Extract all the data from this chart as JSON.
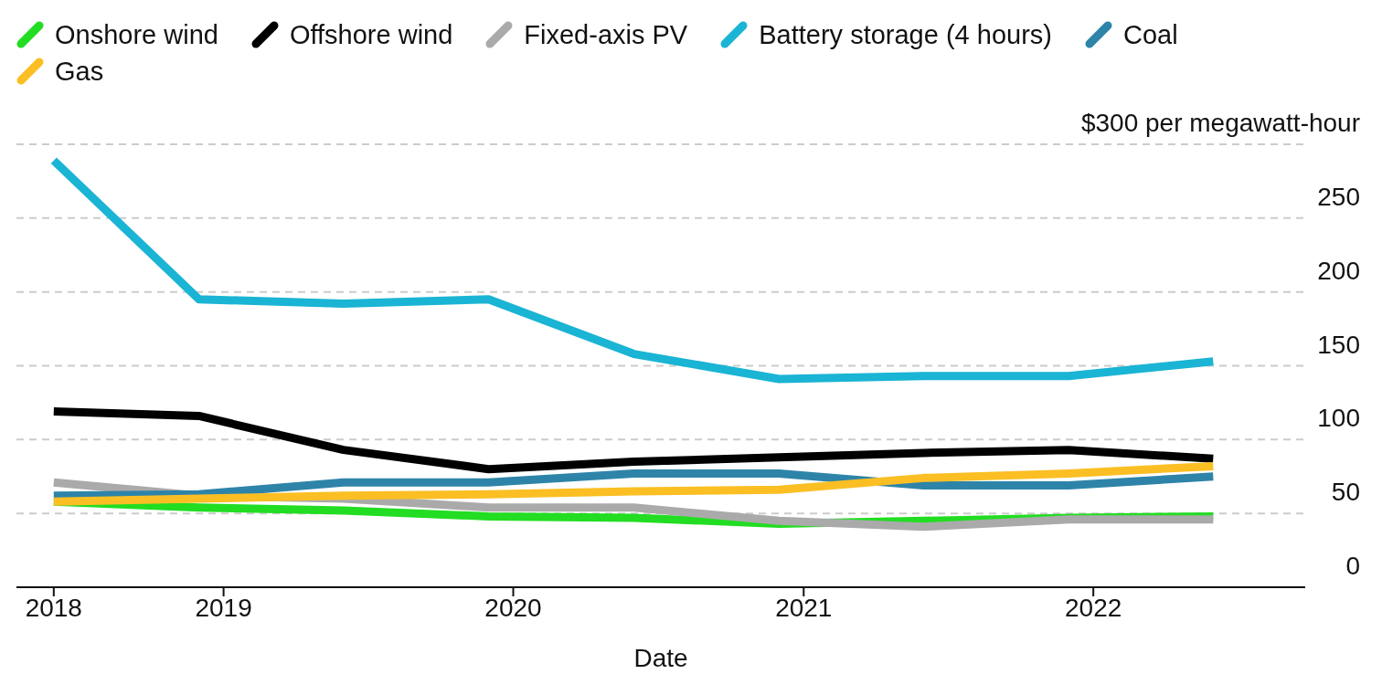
{
  "chart_data": {
    "type": "line",
    "xlabel": "Date",
    "x": [
      "2018-06",
      "2018-12",
      "2019-06",
      "2019-12",
      "2020-06",
      "2020-12",
      "2021-06",
      "2021-12",
      "2022-06"
    ],
    "xlim": [
      "2018-04-15",
      "2022-09-25"
    ],
    "xticks": [
      {
        "value": "2018-06",
        "label": "2018"
      },
      {
        "value": "2019-01",
        "label": "2019"
      },
      {
        "value": "2020-01",
        "label": "2020"
      },
      {
        "value": "2021-01",
        "label": "2021"
      },
      {
        "value": "2022-01",
        "label": "2022"
      }
    ],
    "ylim": [
      0,
      300
    ],
    "yticks": [
      0,
      50,
      100,
      150,
      200,
      250,
      {
        "value": 300,
        "label": "$300 per megawatt-hour"
      }
    ],
    "grid": "y",
    "legend": "top left",
    "marker": "none",
    "line_style": "solid",
    "series": [
      {
        "name": "Onshore wind",
        "color": "#22dd22",
        "values": [
          58,
          54,
          52,
          48,
          47,
          43,
          45,
          47,
          48
        ]
      },
      {
        "name": "Offshore wind",
        "color": "#000000",
        "values": [
          119,
          116,
          93,
          80,
          85,
          88,
          91,
          93,
          87
        ]
      },
      {
        "name": "Fixed-axis PV",
        "color": "#aaaaaa",
        "values": [
          71,
          62,
          60,
          54,
          54,
          45,
          41,
          46,
          46
        ]
      },
      {
        "name": "Battery storage (4 hours)",
        "color": "#1ab4d4",
        "values": [
          289,
          195,
          192,
          195,
          158,
          141,
          143,
          143,
          153
        ]
      },
      {
        "name": "Coal",
        "color": "#2e84a8",
        "values": [
          62,
          63,
          71,
          71,
          77,
          77,
          69,
          69,
          75
        ]
      },
      {
        "name": "Gas",
        "color": "#fbbf24",
        "values": [
          58,
          60,
          62,
          63,
          65,
          66,
          74,
          77,
          82
        ]
      }
    ]
  }
}
